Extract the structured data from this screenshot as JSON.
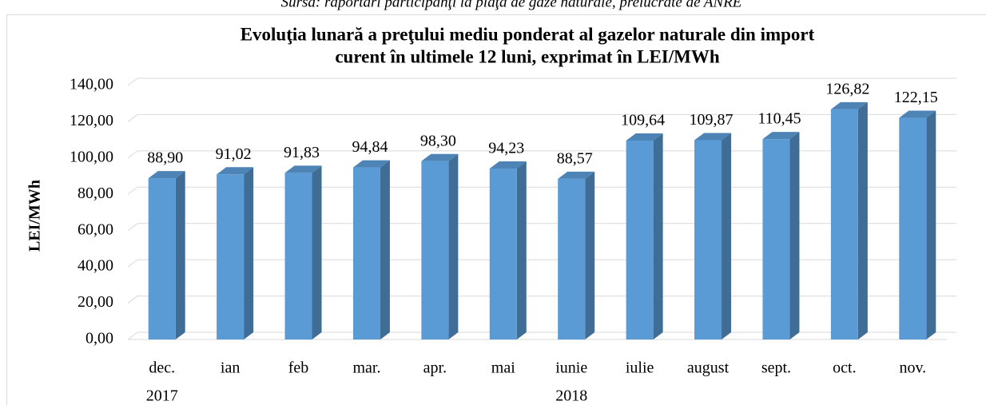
{
  "source": "Sursa: raportări participanţi la piaţa de gaze naturale, prelucrate de ANRE",
  "chart_data": {
    "type": "bar3d",
    "title": [
      "Evoluţia lunară a preţului mediu ponderat al gazelor naturale din import",
      "curent în ultimele 12 luni, exprimat în LEI/MWh"
    ],
    "y_label": "LEI/MWh",
    "categories": [
      "dec.",
      "ian",
      "feb",
      "mar.",
      "apr.",
      "mai",
      "iunie",
      "iulie",
      "august",
      "sept.",
      "oct.",
      "nov."
    ],
    "category_groups": [
      {
        "label": "2017",
        "count": 1
      },
      {
        "label": "2018",
        "count": 11
      }
    ],
    "values": [
      88.9,
      91.02,
      91.83,
      94.84,
      98.3,
      94.23,
      88.57,
      109.64,
      109.87,
      110.45,
      126.82,
      122.15
    ],
    "value_labels": [
      "88,90",
      "91,02",
      "91,83",
      "94,84",
      "98,30",
      "94,23",
      "88,57",
      "109,64",
      "109,87",
      "110,45",
      "126,82",
      "122,15"
    ],
    "color": "#5b9bd5",
    "ylim": [
      0,
      140
    ],
    "yticks": [
      {
        "value": 0,
        "label": "0,00"
      },
      {
        "value": 20,
        "label": "20,00"
      },
      {
        "value": 40,
        "label": "40,00"
      },
      {
        "value": 60,
        "label": "60,00"
      },
      {
        "value": 80,
        "label": "80,00"
      },
      {
        "value": 100,
        "label": "100,00"
      },
      {
        "value": 120,
        "label": "120,00"
      },
      {
        "value": 140,
        "label": "140,00"
      }
    ],
    "grid": true
  }
}
